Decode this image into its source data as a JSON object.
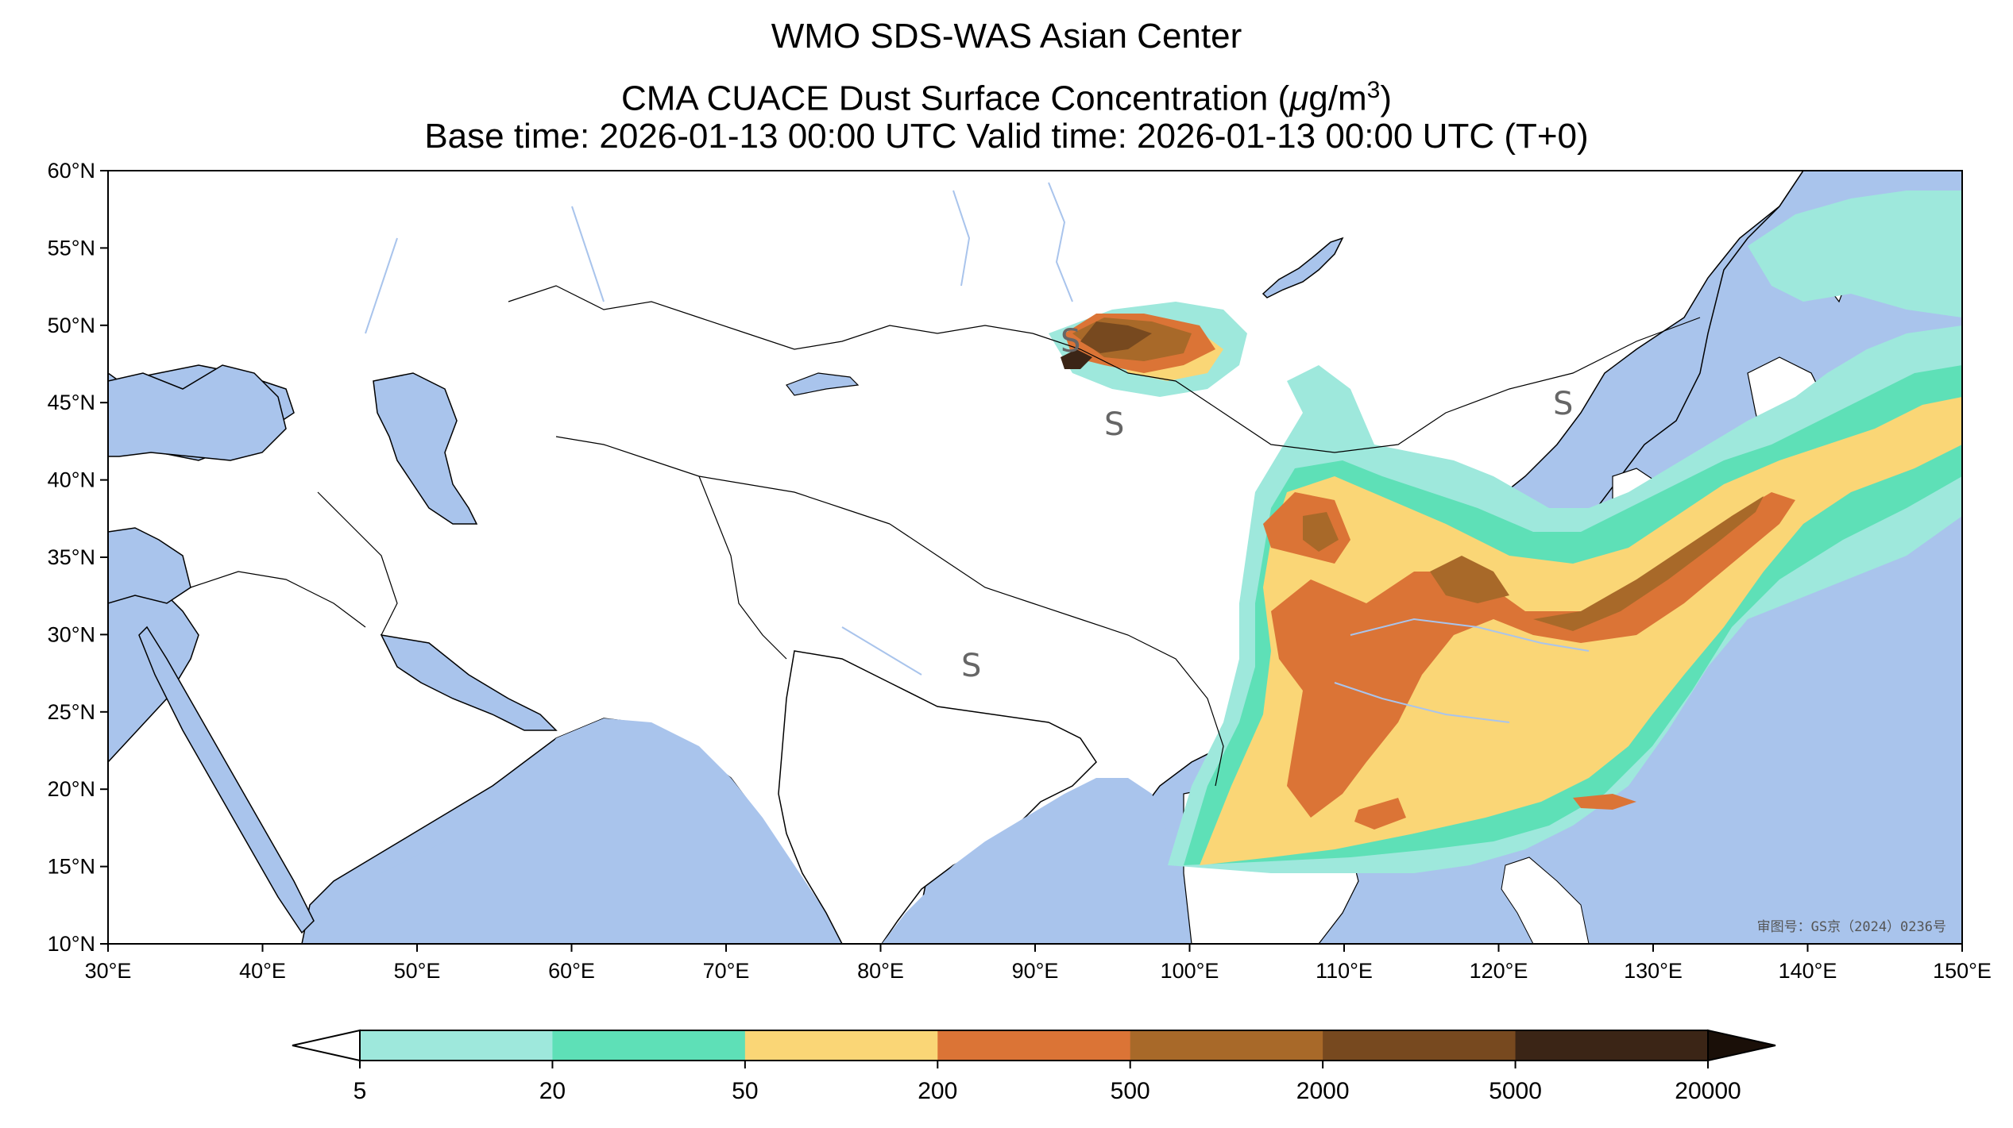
{
  "title": {
    "line1": "WMO SDS-WAS Asian Center",
    "line2_prefix": "CMA CUACE Dust Surface Concentration (",
    "line2_mu": "μ",
    "line2_units": "g/m",
    "line2_sup": "3",
    "line2_suffix": ")",
    "line3": "Base time: 2026-01-13 00:00 UTC Valid time: 2026-01-13 00:00 UTC (T+0)"
  },
  "map": {
    "lon_range": [
      30,
      150
    ],
    "lat_range": [
      10,
      60
    ],
    "lon_ticks": [
      "30°E",
      "40°E",
      "50°E",
      "60°E",
      "70°E",
      "80°E",
      "90°E",
      "100°E",
      "110°E",
      "120°E",
      "130°E",
      "140°E",
      "150°E"
    ],
    "lat_ticks": [
      "60°N",
      "55°N",
      "50°N",
      "45°N",
      "40°N",
      "35°N",
      "30°N",
      "25°N",
      "20°N",
      "15°N",
      "10°N"
    ],
    "ocean_color": "#a9c4ec",
    "land_color": "#ffffff",
    "approval_text": "审图号：GS京（2024）0236号",
    "symbol": "S"
  },
  "colorbar": {
    "labels": [
      "5",
      "20",
      "50",
      "200",
      "500",
      "2000",
      "5000",
      "20000"
    ],
    "colors": [
      "#9ee8dc",
      "#5ee0b7",
      "#fad676",
      "#db7436",
      "#a86929",
      "#77491f",
      "#3b2516"
    ],
    "under_color": "#ffffff",
    "over_color": "#1a0f08"
  }
}
